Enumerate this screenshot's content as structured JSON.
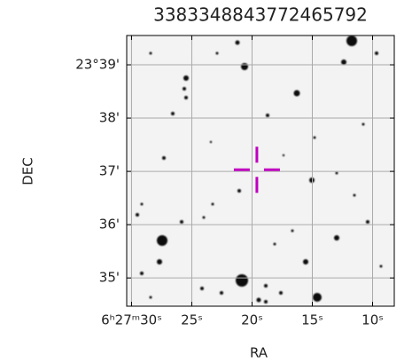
{
  "chart_data": {
    "type": "image",
    "title": "3383348843772465792",
    "xlabel": "RA",
    "ylabel": "DEC",
    "xlim": [
      30.4,
      8.2
    ],
    "ylim": [
      34.47,
      39.55
    ],
    "xticks": [
      {
        "value": 30,
        "label": "6ʰ27ᵐ30ˢ"
      },
      {
        "value": 25,
        "label": "25ˢ"
      },
      {
        "value": 20,
        "label": "20ˢ"
      },
      {
        "value": 15,
        "label": "15ˢ"
      },
      {
        "value": 10,
        "label": "10ˢ"
      }
    ],
    "yticks": [
      {
        "value": 39,
        "label": "23°39'"
      },
      {
        "value": 38,
        "label": "38'"
      },
      {
        "value": 37,
        "label": "37'"
      },
      {
        "value": 36,
        "label": "36'"
      },
      {
        "value": 35,
        "label": "35'"
      }
    ],
    "grid": true,
    "marker": {
      "x": 19.6,
      "y": 37.03,
      "color": "#c000c0"
    }
  }
}
